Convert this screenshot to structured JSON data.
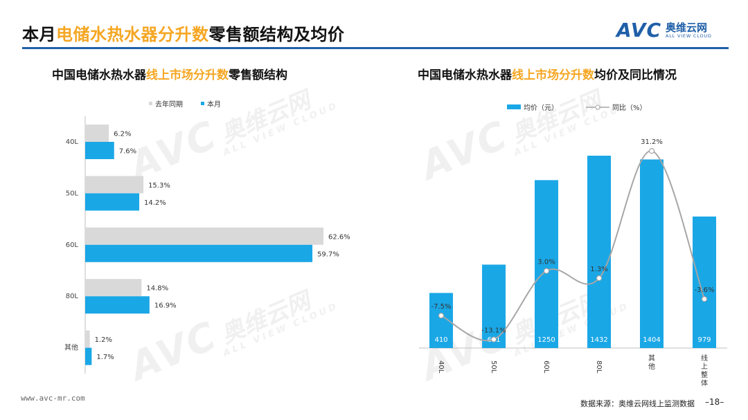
{
  "header": {
    "title_prefix": "本月",
    "title_highlight": "电储水热水器分升数",
    "title_suffix": "零售额结构及均价"
  },
  "logo": {
    "mark": "AVC",
    "name_cn": "奥维云网",
    "name_en": "ALL VIEW CLOUD"
  },
  "watermark": {
    "mark": "AVC",
    "name_cn": "奥维云网",
    "name_en": "ALL VIEW CLOUD"
  },
  "colors": {
    "accent_orange": "#f5a623",
    "bar_blue": "#1aa7e6",
    "bar_gray": "#d9d9d9",
    "line_gray": "#a6a6a6",
    "rule_blue": "#1f5fa8"
  },
  "footer": {
    "website": "www.avc-mr.com",
    "source": "数据来源：奥维云网线上监测数据",
    "page": "–18–"
  },
  "chart_data": [
    {
      "type": "bar",
      "orientation": "horizontal",
      "title_prefix": "中国电储水热水器",
      "title_highlight": "线上市场分升数",
      "title_suffix": "零售额结构",
      "categories": [
        "40L",
        "50L",
        "60L",
        "80L",
        "其他"
      ],
      "series": [
        {
          "name": "去年同期",
          "color": "#d9d9d9",
          "values": [
            6.2,
            15.3,
            62.6,
            14.8,
            1.2
          ],
          "labels": [
            "6.2%",
            "15.3%",
            "62.6%",
            "14.8%",
            "1.2%"
          ]
        },
        {
          "name": "本月",
          "color": "#1aa7e6",
          "values": [
            7.6,
            14.2,
            59.7,
            16.9,
            1.7
          ],
          "labels": [
            "7.6%",
            "14.2%",
            "59.7%",
            "16.9%",
            "1.7%"
          ]
        }
      ],
      "unit": "%",
      "legend": "top"
    },
    {
      "type": "bar",
      "combo": "bar+line",
      "title_prefix": "中国电储水热水器",
      "title_highlight": "线上市场分升数",
      "title_suffix": "均价及同比情况",
      "categories": [
        "40L",
        "50L",
        "60L",
        "80L",
        "其他",
        "线上整体"
      ],
      "category_labels": [
        [
          "40L"
        ],
        [
          "50L"
        ],
        [
          "60L"
        ],
        [
          "80L"
        ],
        [
          "其",
          "他"
        ],
        [
          "线",
          "上",
          "整",
          "体"
        ]
      ],
      "series": [
        {
          "name": "均价（元）",
          "type": "bar",
          "color": "#1aa7e6",
          "values": [
            410,
            621,
            1250,
            1432,
            1404,
            979
          ]
        },
        {
          "name": "同比（%）",
          "type": "line",
          "color": "#a6a6a6",
          "values": [
            -7.5,
            -13.1,
            3.0,
            1.3,
            31.2,
            -3.6
          ],
          "labels": [
            "-7.5%",
            "-13.1%",
            "3.0%",
            "1.3%",
            "31.2%",
            "-3.6%"
          ]
        }
      ],
      "legend": "top"
    }
  ]
}
